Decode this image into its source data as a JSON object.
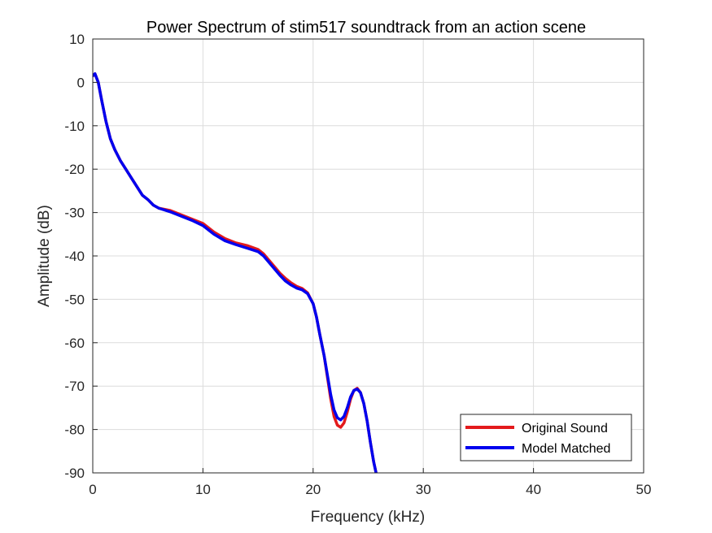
{
  "chart_data": {
    "type": "line",
    "title": "Power Spectrum of stim517 soundtrack from an action scene",
    "xlabel": "Frequency (kHz)",
    "ylabel": "Amplitude (dB)",
    "xlim": [
      0,
      50
    ],
    "ylim": [
      -90,
      10
    ],
    "xticks": [
      0,
      10,
      20,
      30,
      40,
      50
    ],
    "yticks": [
      10,
      0,
      -10,
      -20,
      -30,
      -40,
      -50,
      -60,
      -70,
      -80,
      -90
    ],
    "grid": true,
    "legend_position": "bottom-right",
    "series": [
      {
        "name": "Original Sound",
        "color": "#e31a1c",
        "x": [
          0,
          0.2,
          0.5,
          0.8,
          1.2,
          1.6,
          2,
          2.5,
          3,
          3.5,
          4,
          4.5,
          5,
          5.5,
          6,
          7,
          8,
          9,
          10,
          11,
          12,
          13,
          14,
          15,
          15.5,
          16,
          16.5,
          17,
          17.5,
          18,
          18.5,
          19,
          19.5,
          20,
          20.3,
          20.6,
          21,
          21.3,
          21.6,
          21.9,
          22.2,
          22.5,
          22.8,
          23.1,
          23.4,
          23.7,
          24,
          24.3,
          24.6,
          24.9,
          25.2,
          25.5,
          25.8
        ],
        "y": [
          1.5,
          2,
          0,
          -4,
          -9,
          -13,
          -15.5,
          -18,
          -20,
          -22,
          -24,
          -26,
          -27,
          -28.3,
          -29,
          -29.5,
          -30.5,
          -31.5,
          -32.5,
          -34.5,
          -36,
          -37,
          -37.6,
          -38.5,
          -39.5,
          -41,
          -42.5,
          -44,
          -45.2,
          -46.2,
          -47,
          -47.5,
          -48.5,
          -51,
          -54,
          -58,
          -63,
          -68,
          -73,
          -77,
          -79,
          -79.5,
          -78.5,
          -76,
          -73,
          -71,
          -70.5,
          -71.5,
          -74,
          -78,
          -83,
          -87.5,
          -91
        ]
      },
      {
        "name": "Model Matched",
        "color": "#0000ee",
        "x": [
          0,
          0.2,
          0.5,
          0.8,
          1.2,
          1.6,
          2,
          2.5,
          3,
          3.5,
          4,
          4.5,
          5,
          5.5,
          6,
          7,
          8,
          9,
          10,
          11,
          12,
          13,
          14,
          15,
          15.5,
          16,
          16.5,
          17,
          17.5,
          18,
          18.5,
          19,
          19.5,
          20,
          20.3,
          20.6,
          21,
          21.3,
          21.6,
          21.9,
          22.2,
          22.5,
          22.8,
          23.1,
          23.4,
          23.7,
          24,
          24.3,
          24.6,
          24.9,
          25.2,
          25.5,
          25.8
        ],
        "y": [
          1.5,
          2,
          0,
          -4,
          -9,
          -13,
          -15.5,
          -18,
          -20,
          -22,
          -24,
          -26,
          -27,
          -28.3,
          -29,
          -29.8,
          -30.8,
          -31.8,
          -33,
          -35,
          -36.5,
          -37.4,
          -38.2,
          -39,
          -40,
          -41.5,
          -43,
          -44.5,
          -45.8,
          -46.7,
          -47.4,
          -47.8,
          -48.7,
          -51,
          -54,
          -58,
          -63,
          -67.5,
          -72,
          -75.5,
          -77.3,
          -77.8,
          -77,
          -75,
          -72.5,
          -71,
          -70.7,
          -71.5,
          -74,
          -78,
          -83,
          -87.5,
          -91
        ]
      }
    ]
  }
}
